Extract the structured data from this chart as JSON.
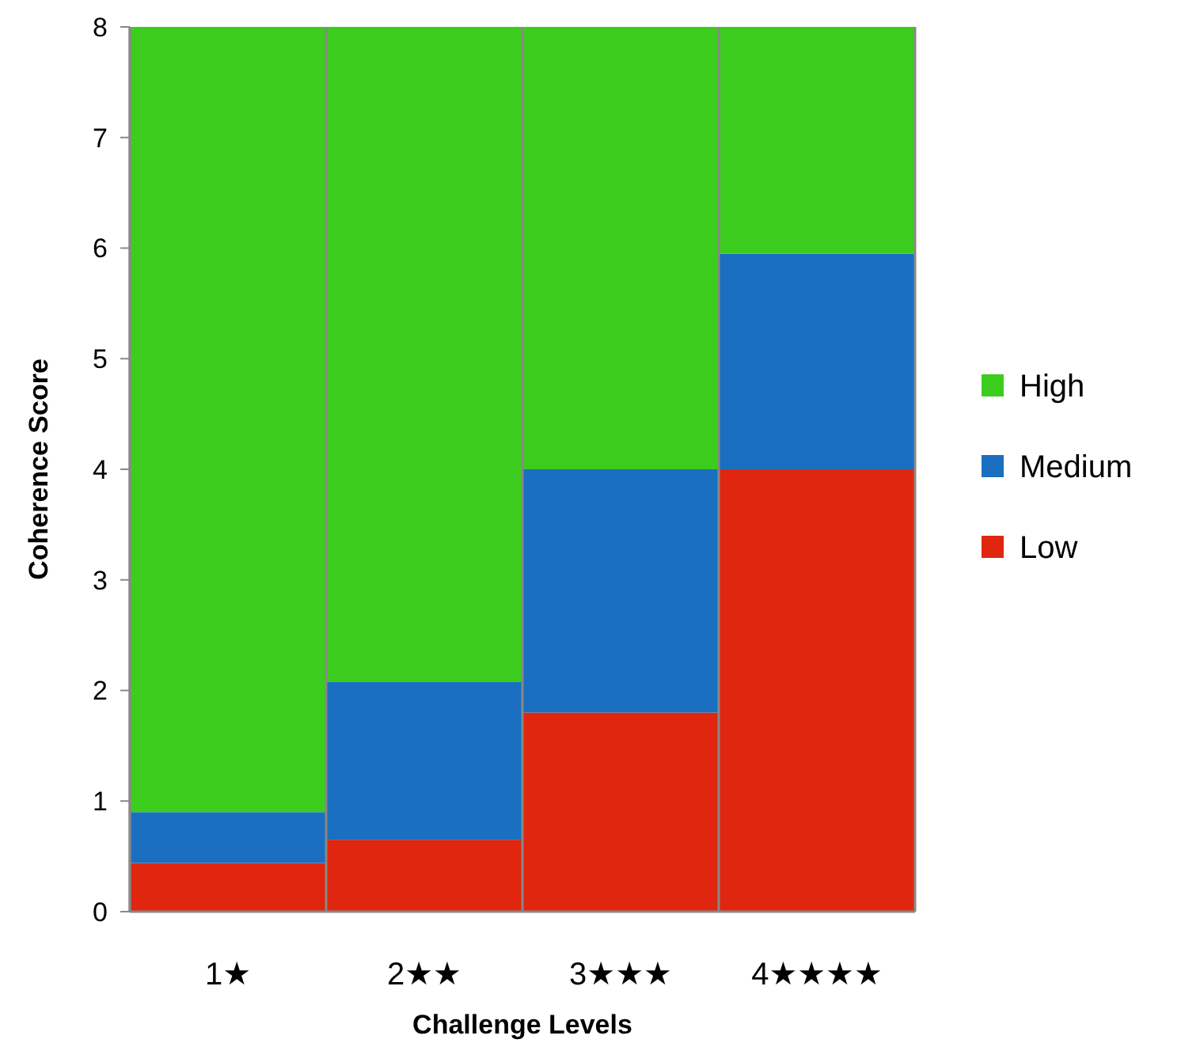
{
  "chart_data": {
    "type": "bar",
    "stacked": true,
    "xlabel": "Challenge Levels",
    "ylabel": "Coherence Score",
    "categories": [
      "1★",
      "2★★",
      "3★★★",
      "4★★★★"
    ],
    "series": [
      {
        "name": "Low",
        "color": "#e0260f",
        "values": [
          0.44,
          0.65,
          1.8,
          4.0
        ]
      },
      {
        "name": "Medium",
        "color": "#1a6fc0",
        "values": [
          0.46,
          1.43,
          2.2,
          1.95
        ]
      },
      {
        "name": "High",
        "color": "#3ccc1e",
        "values": [
          7.1,
          5.92,
          4.0,
          2.05
        ]
      }
    ],
    "ylim": [
      0,
      8
    ],
    "yticks": [
      0,
      1,
      2,
      3,
      4,
      5,
      6,
      7,
      8
    ],
    "legend": "right"
  }
}
